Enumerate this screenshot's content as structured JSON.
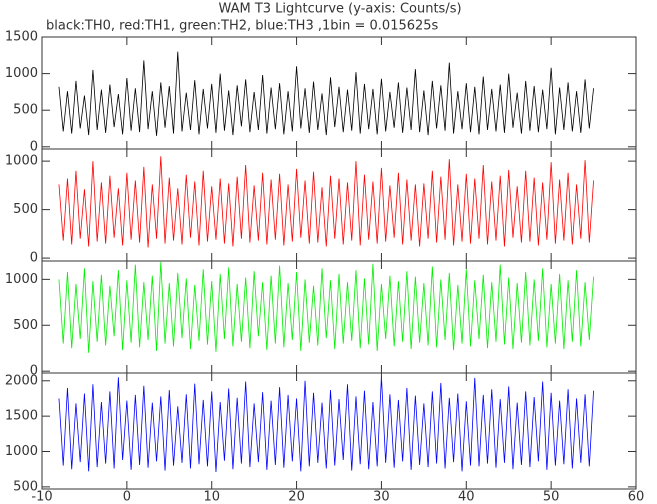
{
  "chart_data": {
    "type": "line",
    "title": "WAM T3 Lightcurve (y-axis: Counts/s)",
    "subtitle": "black:TH0, red:TH1, green:TH2, blue:TH3 ,1bin = 0.015625s",
    "xlim": [
      -10,
      60
    ],
    "xticks": [
      -10,
      0,
      10,
      20,
      30,
      40,
      50,
      60
    ],
    "x": [
      -8,
      -7.5,
      -7,
      -6.5,
      -6,
      -5.5,
      -5,
      -4.5,
      -4,
      -3.5,
      -3,
      -2.5,
      -2,
      -1.5,
      -1,
      -0.5,
      0,
      0.5,
      1,
      1.5,
      2,
      2.5,
      3,
      3.5,
      4,
      4.5,
      5,
      5.5,
      6,
      6.5,
      7,
      7.5,
      8,
      8.5,
      9,
      9.5,
      10,
      10.5,
      11,
      11.5,
      12,
      12.5,
      13,
      13.5,
      14,
      14.5,
      15,
      15.5,
      16,
      16.5,
      17,
      17.5,
      18,
      18.5,
      19,
      19.5,
      20,
      20.5,
      21,
      21.5,
      22,
      22.5,
      23,
      23.5,
      24,
      24.5,
      25,
      25.5,
      26,
      26.5,
      27,
      27.5,
      28,
      28.5,
      29,
      29.5,
      30,
      30.5,
      31,
      31.5,
      32,
      32.5,
      33,
      33.5,
      34,
      34.5,
      35,
      35.5,
      36,
      36.5,
      37,
      37.5,
      38,
      38.5,
      39,
      39.5,
      40,
      40.5,
      41,
      41.5,
      42,
      42.5,
      43,
      43.5,
      44,
      44.5,
      45,
      45.5,
      46,
      46.5,
      47,
      47.5,
      48,
      48.5,
      49,
      49.5,
      50,
      50.5,
      51,
      51.5,
      52,
      52.5,
      53,
      53.5,
      54,
      54.5,
      55
    ],
    "panels": [
      {
        "color": "#000000",
        "ylim": [
          -30,
          1500
        ],
        "yticks": [
          0,
          500,
          1000,
          1500
        ],
        "values": [
          820,
          210,
          760,
          180,
          900,
          250,
          700,
          160,
          1050,
          230,
          780,
          190,
          850,
          270,
          720,
          170,
          940,
          220,
          800,
          200,
          1180,
          240,
          760,
          150,
          880,
          260,
          830,
          180,
          1300,
          210,
          740,
          230,
          910,
          170,
          790,
          250,
          860,
          190,
          1000,
          220,
          770,
          160,
          840,
          280,
          920,
          200,
          750,
          230,
          980,
          180,
          810,
          240,
          870,
          170,
          760,
          210,
          1100,
          250,
          800,
          190,
          890,
          230,
          730,
          160,
          950,
          270,
          820,
          200,
          780,
          220,
          1020,
          180,
          860,
          240,
          790,
          170,
          930,
          210,
          750,
          260,
          880,
          190,
          810,
          230,
          1060,
          200,
          770,
          160,
          900,
          250,
          840,
          220,
          1150,
          180,
          760,
          240,
          870,
          200,
          820,
          170,
          960,
          230,
          790,
          210,
          850,
          190,
          1000,
          260,
          740,
          180,
          900,
          220,
          830,
          200,
          780,
          240,
          1080,
          170,
          810,
          230,
          880,
          210,
          760,
          190,
          920,
          250,
          800
        ]
      },
      {
        "color": "#ff0000",
        "ylim": [
          -30,
          1125
        ],
        "yticks": [
          0,
          500,
          1000
        ],
        "values": [
          760,
          180,
          820,
          140,
          900,
          200,
          710,
          120,
          1000,
          170,
          780,
          150,
          850,
          210,
          720,
          130,
          880,
          190,
          800,
          160,
          940,
          110,
          760,
          200,
          1050,
          150,
          830,
          180,
          720,
          140,
          860,
          210,
          790,
          130,
          900,
          170,
          740,
          190,
          820,
          150,
          770,
          120,
          840,
          200,
          960,
          160,
          750,
          180,
          880,
          140,
          810,
          190,
          870,
          130,
          760,
          170,
          920,
          210,
          800,
          150,
          890,
          160,
          730,
          120,
          850,
          200,
          820,
          140,
          780,
          180,
          1000,
          130,
          860,
          190,
          790,
          150,
          930,
          170,
          750,
          210,
          880,
          140,
          810,
          180,
          760,
          120,
          770,
          200,
          900,
          160,
          840,
          190,
          1020,
          130,
          760,
          170,
          870,
          150,
          820,
          200,
          960,
          140,
          790,
          180,
          850,
          120,
          910,
          210,
          740,
          160,
          900,
          170,
          830,
          130,
          780,
          190,
          990,
          150,
          810,
          180,
          880,
          140,
          760,
          200,
          1010,
          160,
          800
        ]
      },
      {
        "color": "#00ee00",
        "ylim": [
          -20,
          1200
        ],
        "yticks": [
          0,
          500,
          1000
        ],
        "values": [
          1000,
          300,
          1080,
          250,
          950,
          350,
          1120,
          200,
          980,
          320,
          1050,
          280,
          930,
          380,
          1100,
          230,
          990,
          310,
          1160,
          260,
          970,
          340,
          1040,
          220,
          1190,
          300,
          960,
          270,
          1070,
          360,
          1010,
          240,
          940,
          330,
          1110,
          290,
          980,
          210,
          1060,
          350,
          1130,
          270,
          950,
          320,
          1020,
          250,
          1090,
          380,
          970,
          230,
          1040,
          300,
          1150,
          260,
          960,
          340,
          1080,
          220,
          1000,
          310,
          930,
          280,
          1120,
          360,
          990,
          240,
          1060,
          300,
          970,
          330,
          1100,
          250,
          1010,
          290,
          1170,
          220,
          950,
          350,
          1040,
          270,
          980,
          320,
          1090,
          240,
          1030,
          310,
          960,
          280,
          1140,
          260,
          1000,
          340,
          1070,
          230,
          940,
          300,
          1110,
          270,
          990,
          350,
          1050,
          250,
          970,
          320,
          1160,
          290,
          1020,
          240,
          960,
          310,
          1080,
          280,
          1000,
          330,
          1120,
          260,
          950,
          300,
          1060,
          240,
          990,
          320,
          1100,
          270,
          970,
          340,
          1030
        ]
      },
      {
        "color": "#0000ff",
        "ylim": [
          470,
          2110
        ],
        "yticks": [
          500,
          1000,
          1500,
          2000
        ],
        "values": [
          1750,
          800,
          1900,
          750,
          1680,
          850,
          1820,
          720,
          1950,
          780,
          1700,
          830,
          1850,
          760,
          2050,
          880,
          1720,
          740,
          1800,
          810,
          1930,
          770,
          1690,
          860,
          1780,
          730,
          1870,
          800,
          1640,
          840,
          1810,
          760,
          1960,
          820,
          1730,
          790,
          1850,
          710,
          1700,
          870,
          1890,
          750,
          1760,
          830,
          1990,
          780,
          1680,
          850,
          1840,
          740,
          1720,
          810,
          1910,
          770,
          1800,
          860,
          1750,
          720,
          2000,
          790,
          1830,
          840,
          1690,
          760,
          1870,
          800,
          1740,
          880,
          1950,
          730,
          1780,
          820,
          1860,
          750,
          1700,
          790,
          2060,
          840,
          1810,
          770,
          1730,
          860,
          1900,
          740,
          1790,
          810,
          1680,
          780,
          1850,
          830,
          1970,
          760,
          1760,
          850,
          1820,
          720,
          1710,
          800,
          2040,
          790,
          1800,
          830,
          1880,
          770,
          1740,
          840,
          1920,
          750,
          1690,
          810,
          1850,
          780,
          1770,
          860,
          1990,
          740,
          1830,
          800,
          1720,
          820,
          1880,
          760,
          1750,
          840,
          1810,
          790,
          1860
        ]
      }
    ]
  }
}
